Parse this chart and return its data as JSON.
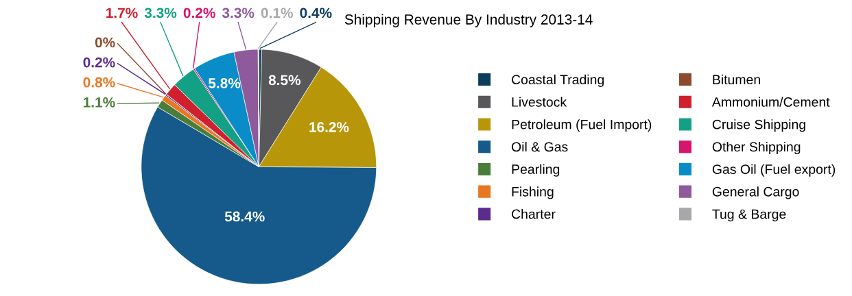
{
  "chart_data": {
    "type": "pie",
    "title": "Shipping Revenue By Industry 2013-14",
    "categories": [
      "Coastal Trading",
      "Livestock",
      "Petroleum (Fuel Import)",
      "Oil & Gas",
      "Pearling",
      "Fishing",
      "Charter",
      "Bitumen",
      "Ammonium/Cement",
      "Cruise Shipping",
      "Other Shipping",
      "Gas Oil (Fuel export)",
      "General Cargo",
      "Tug & Barge"
    ],
    "values": [
      0.4,
      8.5,
      16.2,
      58.4,
      1.1,
      0.8,
      0.2,
      0,
      1.7,
      3.3,
      0.2,
      5.8,
      3.3,
      0.1
    ],
    "value_labels": [
      "0.4%",
      "8.5%",
      "16.2%",
      "58.4%",
      "1.1%",
      "0.8%",
      "0.2%",
      "0%",
      "1.7%",
      "3.3%",
      "0.2%",
      "5.8%",
      "3.3%",
      "0.1%"
    ],
    "colors": [
      "#0d3d5c",
      "#58585a",
      "#b8960a",
      "#155a8a",
      "#4a7d3a",
      "#e87722",
      "#5b2c8c",
      "#8b4a2b",
      "#d0202e",
      "#14a085",
      "#d6156c",
      "#0a8cc8",
      "#8e5a9c",
      "#a8a8aa"
    ],
    "legend": "right"
  }
}
